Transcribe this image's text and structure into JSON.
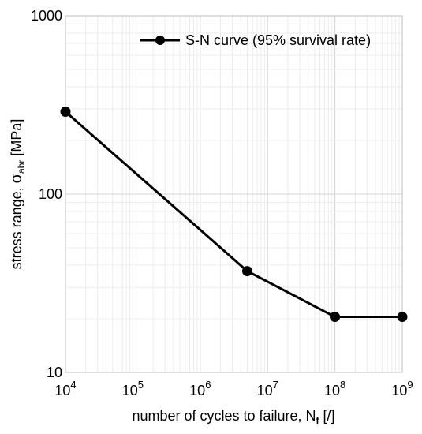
{
  "chart_data": {
    "type": "line",
    "xscale": "log",
    "yscale": "log",
    "xlim": [
      10000,
      1000000000
    ],
    "ylim": [
      10,
      1000
    ],
    "grid": true,
    "legend_position": "top-right",
    "x_tick_labels": [
      {
        "base": "10",
        "exp": "4"
      },
      {
        "base": "10",
        "exp": "5"
      },
      {
        "base": "10",
        "exp": "6"
      },
      {
        "base": "10",
        "exp": "7"
      },
      {
        "base": "10",
        "exp": "8"
      },
      {
        "base": "10",
        "exp": "9"
      }
    ],
    "y_tick_labels": [
      "10",
      "100",
      "1000"
    ],
    "ylabel": {
      "prefix": "stress range, ",
      "symbol": "σ",
      "sub": "abr",
      "suffix": " [MPa]"
    },
    "xlabel": {
      "prefix": "number of cycles to failure, ",
      "symbol": "N",
      "sub": "f",
      "suffix": " [/]"
    },
    "series": [
      {
        "name": "S-N curve (95% survival rate)",
        "color": "#000000",
        "x": [
          10000,
          5000000,
          100000000,
          1000000000
        ],
        "y": [
          290,
          37,
          20.5,
          20.5
        ]
      }
    ]
  }
}
